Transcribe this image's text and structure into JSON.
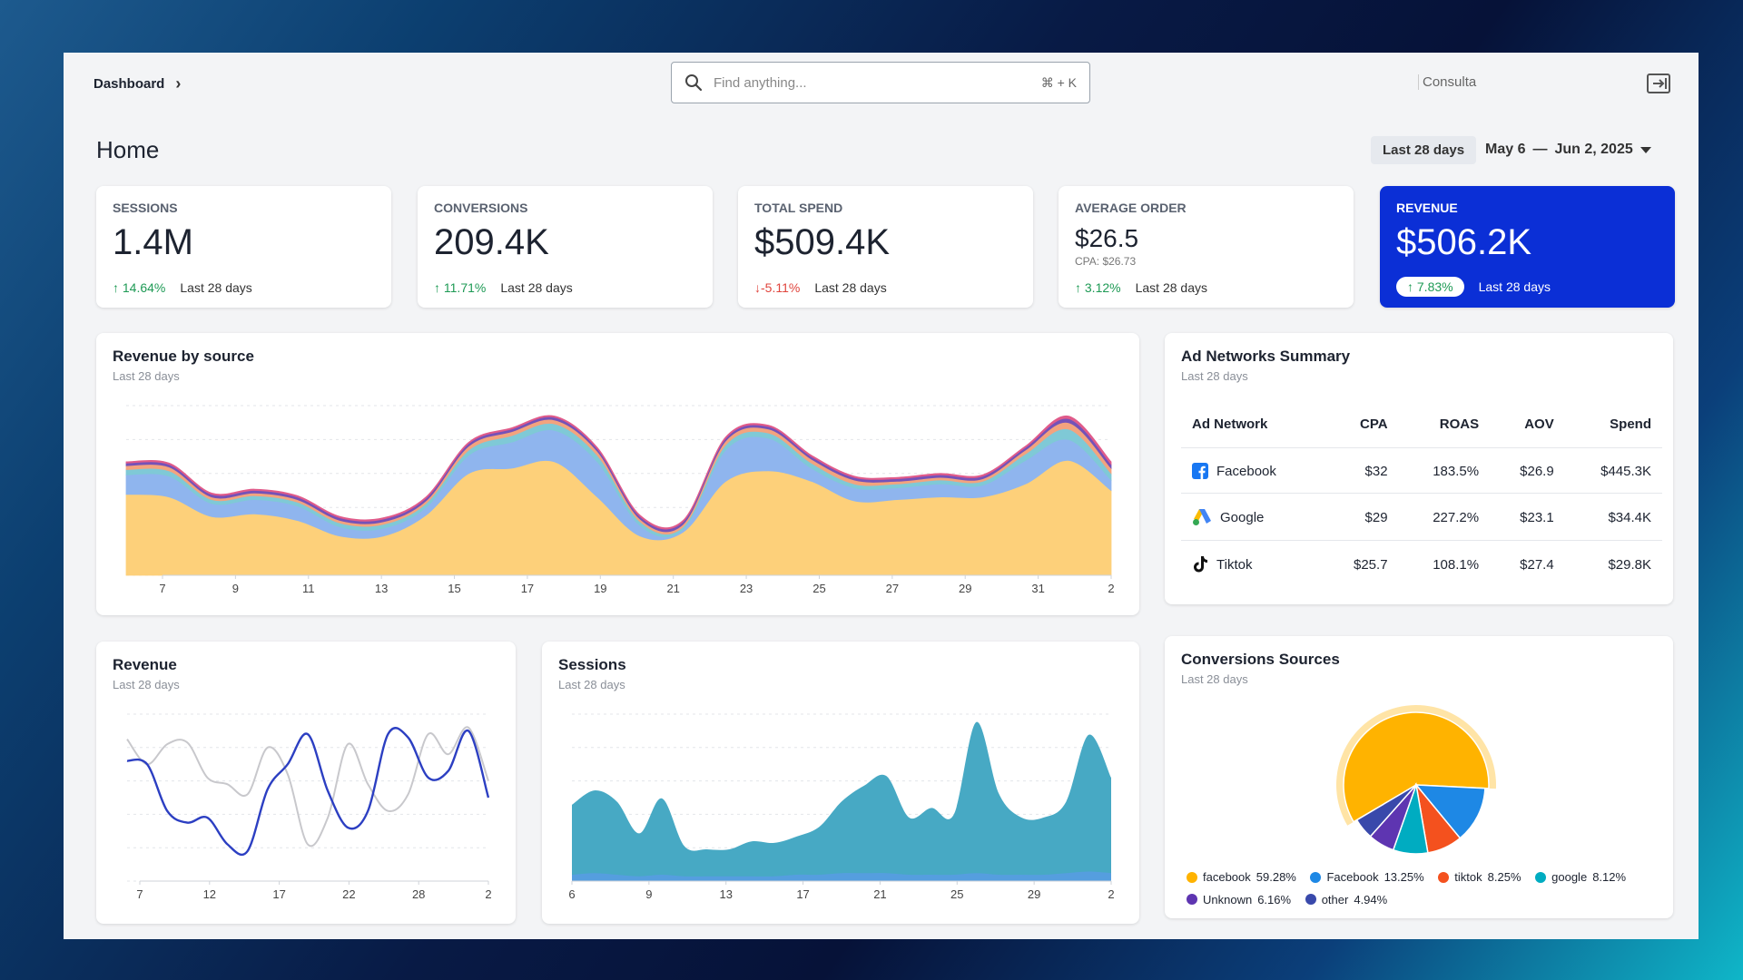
{
  "header": {
    "breadcrumb": "Dashboard",
    "search_placeholder": "Find anything...",
    "search_shortcut": "⌘ + K",
    "account": "Consulta",
    "logout_icon": "logout-icon"
  },
  "page": {
    "title": "Home",
    "range_chip": "Last 28 days",
    "range_start": "May 6",
    "range_sep": "—",
    "range_end": "Jun 2, 2025"
  },
  "kpis": {
    "sessions": {
      "label": "SESSIONS",
      "value": "1.4M",
      "change": "14.64%",
      "period": "Last 28 days"
    },
    "conversions": {
      "label": "CONVERSIONS",
      "value": "209.4K",
      "change": "11.71%",
      "period": "Last 28 days"
    },
    "spend": {
      "label": "TOTAL SPEND",
      "value": "$509.4K",
      "change": "-5.11%",
      "period": "Last 28 days"
    },
    "avg_order": {
      "label": "AVERAGE ORDER",
      "value": "$26.5",
      "sub": "CPA: $26.73",
      "change": "3.12%",
      "period": "Last 28 days"
    },
    "revenue": {
      "label": "REVENUE",
      "value": "$506.2K",
      "change": "7.83%",
      "period": "Last 28 days"
    }
  },
  "colors": {
    "accent": "#0b2fd6",
    "up": "#1e9a55",
    "down": "#e0453d",
    "src_yellow": "#fdd07a",
    "src_blue": "#8fb5ee",
    "src_teal": "#7fc9d6",
    "src_orange": "#f3a37e",
    "src_purple": "#7452b8",
    "src_pink": "#e05b8a",
    "sessions_fill": "#47a9c4",
    "sessions_base": "#5a9be8"
  },
  "revenue_by_source": {
    "title": "Revenue by source",
    "subtitle": "Last 28 days"
  },
  "ad_networks": {
    "title": "Ad Networks Summary",
    "subtitle": "Last 28 days",
    "columns": [
      "Ad Network",
      "CPA",
      "ROAS",
      "AOV",
      "Spend"
    ],
    "rows": [
      {
        "network": "Facebook",
        "icon": "facebook-icon",
        "cpa": "$32",
        "roas": "183.5%",
        "aov": "$26.9",
        "spend": "$445.3K"
      },
      {
        "network": "Google",
        "icon": "google-ads-icon",
        "cpa": "$29",
        "roas": "227.2%",
        "aov": "$23.1",
        "spend": "$34.4K"
      },
      {
        "network": "Tiktok",
        "icon": "tiktok-icon",
        "cpa": "$25.7",
        "roas": "108.1%",
        "aov": "$27.4",
        "spend": "$29.8K"
      }
    ]
  },
  "revenue_card": {
    "title": "Revenue",
    "subtitle": "Last 28 days"
  },
  "sessions_card": {
    "title": "Sessions",
    "subtitle": "Last 28 days"
  },
  "conversions_card": {
    "title": "Conversions Sources",
    "subtitle": "Last 28 days",
    "legend": [
      {
        "label": "facebook",
        "pct": "59.28%",
        "color": "#ffb300"
      },
      {
        "label": "Facebook",
        "pct": "13.25%",
        "color": "#1e88e5"
      },
      {
        "label": "tiktok",
        "pct": "8.25%",
        "color": "#f4511e"
      },
      {
        "label": "google",
        "pct": "8.12%",
        "color": "#00acc1"
      },
      {
        "label": "Unknown",
        "pct": "6.16%",
        "color": "#5e35b1"
      },
      {
        "label": "other",
        "pct": "4.94%",
        "color": "#3949ab"
      }
    ]
  },
  "chart_data": [
    {
      "type": "area",
      "stacked": true,
      "x_ticks": [
        "7",
        "9",
        "11",
        "13",
        "15",
        "17",
        "19",
        "21",
        "23",
        "25",
        "27",
        "29",
        "31",
        "2"
      ],
      "grid": true,
      "series": [
        {
          "values": [
            62,
            60,
            45,
            47,
            42,
            30,
            30,
            46,
            78,
            82,
            87,
            60,
            30,
            33,
            72,
            80,
            72,
            57,
            58,
            60,
            60,
            70,
            88,
            65
          ]
        },
        {
          "values": [
            15,
            16,
            10,
            11,
            11,
            7,
            6,
            6,
            14,
            20,
            24,
            27,
            8,
            2,
            24,
            25,
            10,
            10,
            9,
            10,
            9,
            18,
            16,
            8
          ]
        },
        {
          "values": [
            4,
            4,
            3,
            3,
            3,
            3,
            3,
            3,
            4,
            5,
            5,
            5,
            3,
            2,
            4,
            4,
            4,
            3,
            3,
            3,
            3,
            5,
            8,
            5
          ]
        },
        {
          "values": [
            3,
            3,
            2,
            2,
            2,
            2,
            2,
            2,
            3,
            3,
            3,
            3,
            2,
            2,
            3,
            3,
            3,
            3,
            2,
            2,
            2,
            3,
            5,
            4
          ]
        },
        {
          "values": [
            2,
            2,
            2,
            2,
            2,
            2,
            2,
            2,
            2,
            2,
            2,
            2,
            2,
            2,
            2,
            2,
            2,
            2,
            2,
            2,
            2,
            2,
            3,
            3
          ]
        },
        {
          "values": [
            1,
            1,
            1,
            1,
            1,
            1,
            1,
            1,
            1,
            1,
            1,
            1,
            1,
            1,
            1,
            1,
            1,
            1,
            1,
            1,
            1,
            1,
            2,
            2
          ]
        }
      ]
    },
    {
      "type": "line",
      "x_ticks": [
        "7",
        "12",
        "17",
        "22",
        "28",
        "2"
      ],
      "grid": true,
      "series": [
        {
          "values": [
            72,
            70,
            42,
            35,
            38,
            22,
            18,
            55,
            70,
            88,
            54,
            32,
            42,
            88,
            86,
            62,
            66,
            90,
            50
          ]
        },
        {
          "values": [
            85,
            70,
            82,
            83,
            62,
            58,
            52,
            80,
            64,
            22,
            38,
            82,
            58,
            42,
            52,
            88,
            76,
            92,
            60
          ]
        }
      ]
    },
    {
      "type": "area",
      "x_ticks": [
        "6",
        "9",
        "13",
        "17",
        "21",
        "25",
        "29",
        "2"
      ],
      "grid": true,
      "series": [
        {
          "values": [
            48,
            57,
            50,
            30,
            52,
            22,
            20,
            20,
            25,
            24,
            28,
            34,
            50,
            60,
            66,
            40,
            46,
            42,
            100,
            55,
            40,
            40,
            50,
            92,
            65
          ]
        },
        {
          "values": [
            4,
            5,
            4,
            3,
            4,
            3,
            3,
            3,
            3,
            3,
            4,
            4,
            5,
            5,
            5,
            4,
            4,
            4,
            5,
            4,
            4,
            4,
            5,
            6,
            5
          ]
        }
      ]
    },
    {
      "type": "pie",
      "slices": [
        {
          "label": "facebook",
          "value": 59.28
        },
        {
          "label": "Facebook",
          "value": 13.25
        },
        {
          "label": "tiktok",
          "value": 8.25
        },
        {
          "label": "google",
          "value": 8.12
        },
        {
          "label": "Unknown",
          "value": 6.16
        },
        {
          "label": "other",
          "value": 4.94
        }
      ]
    }
  ]
}
